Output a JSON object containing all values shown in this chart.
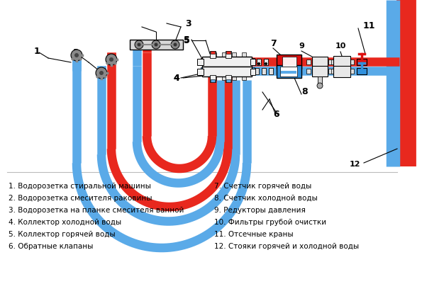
{
  "bg_color": "#ffffff",
  "legend_items_left": [
    "1. Водорозетка стиральной машины",
    "2. Водорозетка смесителя раковины",
    "3. Водорозетка на планке смесителя ванной",
    "4. Коллектор холодной воды",
    "5. Коллектор горячей воды",
    "6. Обратные клапаны"
  ],
  "legend_items_right": [
    "7. Счетчик горячей воды",
    "8. Счетчик холодной воды",
    "9. Редукторы давления",
    "10. Фильтры грубой очистки",
    "11. Отсечные краны",
    "12. Стояки горячей и холодной воды"
  ],
  "hot_color": "#e8281e",
  "cold_color": "#5aaae8",
  "fig_width": 5.95,
  "fig_height": 4.25,
  "dpi": 100
}
